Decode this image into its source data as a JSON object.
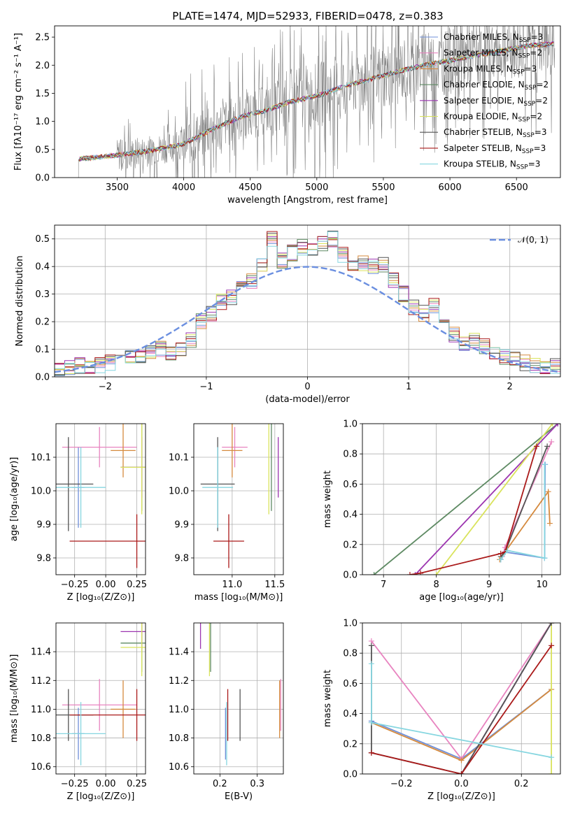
{
  "colors": {
    "Chabrier MILES": "#6f8fd8",
    "Salpeter MILES": "#e884c0",
    "Kroupa MILES": "#d58a3e",
    "Chabrier ELODIE": "#5e8a63",
    "Salpeter ELODIE": "#9c35b0",
    "Kroupa ELODIE": "#d9e35c",
    "Chabrier STELIB": "#555555",
    "Salpeter STELIB": "#aa1a1a",
    "Kroupa STELIB": "#86d6e0",
    "gaussian": "#6b8fe0",
    "spectrum": "#7a7a7a"
  },
  "chart_data": [
    {
      "id": "spectrum",
      "type": "line",
      "title": "PLATE=1474, MJD=52933, FIBERID=0478, z=0.383",
      "xlabel": "wavelength [Angstrom, rest frame]",
      "ylabel": "Flux [fλ10⁻¹⁷ erg cm⁻² s⁻¹ A⁻¹]",
      "xlim": [
        3030,
        6830
      ],
      "ylim": [
        0,
        2.7
      ],
      "xticks": [
        "3500",
        "4000",
        "4500",
        "5000",
        "5500",
        "6000",
        "6500"
      ],
      "yticks": [
        "0.0",
        "0.5",
        "1.0",
        "1.5",
        "2.0",
        "2.5"
      ],
      "continuum": {
        "x": [
          3210,
          3350,
          3500,
          3700,
          3900,
          4000,
          4150,
          4300,
          4450,
          4600,
          4800,
          5000,
          5200,
          5400,
          5600,
          5800,
          6000,
          6200,
          6400,
          6600,
          6780
        ],
        "y": [
          0.33,
          0.36,
          0.4,
          0.46,
          0.55,
          0.6,
          0.78,
          0.95,
          1.1,
          1.18,
          1.35,
          1.45,
          1.62,
          1.75,
          1.88,
          2.0,
          2.08,
          2.18,
          2.26,
          2.35,
          2.38
        ]
      },
      "legend": [
        "Chabrier MILES",
        "Salpeter MILES",
        "Kroupa MILES",
        "Chabrier ELODIE",
        "Salpeter ELODIE",
        "Kroupa ELODIE",
        "Chabrier STELIB",
        "Salpeter STELIB",
        "Kroupa STELIB"
      ],
      "legend_suffix": [
        "3",
        "2",
        "3",
        "2",
        "2",
        "2",
        "3",
        "3",
        "3"
      ]
    },
    {
      "id": "histogram",
      "type": "line",
      "xlabel": "(data-model)/error",
      "ylabel": "Normed distribution",
      "xlim": [
        -2.5,
        2.5
      ],
      "ylim": [
        0,
        0.55
      ],
      "xticks": [
        "−2",
        "−1",
        "0",
        "1",
        "2"
      ],
      "yticks": [
        "0.0",
        "0.1",
        "0.2",
        "0.3",
        "0.4",
        "0.5"
      ],
      "bin_width": 0.1,
      "bin_start": -2.5,
      "base_heights": [
        0.02,
        0.03,
        0.04,
        0.04,
        0.04,
        0.05,
        0.06,
        0.07,
        0.08,
        0.09,
        0.1,
        0.09,
        0.1,
        0.13,
        0.2,
        0.23,
        0.27,
        0.29,
        0.32,
        0.35,
        0.41,
        0.5,
        0.42,
        0.45,
        0.47,
        0.46,
        0.48,
        0.5,
        0.44,
        0.4,
        0.41,
        0.4,
        0.41,
        0.35,
        0.3,
        0.25,
        0.23,
        0.26,
        0.2,
        0.15,
        0.12,
        0.13,
        0.11,
        0.09,
        0.07,
        0.06,
        0.05,
        0.04,
        0.04,
        0.04
      ],
      "legend": "𝒩(0, 1)"
    },
    {
      "id": "age-vs-Z",
      "type": "scatter",
      "xlabel": "Z [log₁₀(Z/Z⊙)]",
      "ylabel": "age  [log₁₀(age/yr)]",
      "xlim": [
        -0.4,
        0.32
      ],
      "ylim": [
        9.75,
        10.2
      ],
      "xticks": [
        "−0.25",
        "0.00",
        "0.25"
      ],
      "yticks": [
        "9.8",
        "9.9",
        "10.0",
        "10.1"
      ]
    },
    {
      "id": "age-vs-mass",
      "type": "scatter",
      "xlabel": "mass [log₁₀(M/M⊙)]",
      "xlim": [
        10.55,
        11.6
      ],
      "ylim": [
        9.75,
        10.2
      ],
      "xticks": [
        "11.0",
        "11.5"
      ],
      "yticks": [
        "9.8",
        "9.9",
        "10.0",
        "10.1"
      ]
    },
    {
      "id": "massweight-vs-age",
      "type": "line",
      "xlabel": "age  [log₁₀(age/yr)]",
      "ylabel": "mass weight",
      "xlim": [
        6.6,
        10.35
      ],
      "ylim": [
        0,
        1
      ],
      "xticks": [
        "7",
        "8",
        "9",
        "10"
      ],
      "yticks": [
        "0.0",
        "0.2",
        "0.4",
        "0.6",
        "0.8",
        "1.0"
      ]
    },
    {
      "id": "mass-vs-Z",
      "type": "scatter",
      "xlabel": "Z [log₁₀(Z/Z⊙)]",
      "ylabel": "mass [log₁₀(M/M⊙)]",
      "xlim": [
        -0.4,
        0.32
      ],
      "ylim": [
        10.55,
        11.6
      ],
      "xticks": [
        "−0.25",
        "0.00",
        "0.25"
      ],
      "yticks": [
        "10.6",
        "10.8",
        "11.0",
        "11.2",
        "11.4"
      ]
    },
    {
      "id": "mass-vs-ebv",
      "type": "scatter",
      "xlabel": "E(B-V)",
      "xlim": [
        0.13,
        0.37
      ],
      "ylim": [
        10.55,
        11.6
      ],
      "xticks": [
        "0.2",
        "0.3"
      ],
      "yticks": [
        "10.6",
        "10.8",
        "11.0",
        "11.2",
        "11.4"
      ]
    },
    {
      "id": "massweight-vs-Z",
      "type": "line",
      "xlabel": "Z [log₁₀(Z/Z⊙)]",
      "ylabel": "mass weight",
      "xlim": [
        -0.33,
        0.33
      ],
      "ylim": [
        0,
        1
      ],
      "xticks": [
        "−0.2",
        "0.0",
        "0.2"
      ],
      "yticks": [
        "0.0",
        "0.2",
        "0.4",
        "0.6",
        "0.8",
        "1.0"
      ]
    }
  ]
}
